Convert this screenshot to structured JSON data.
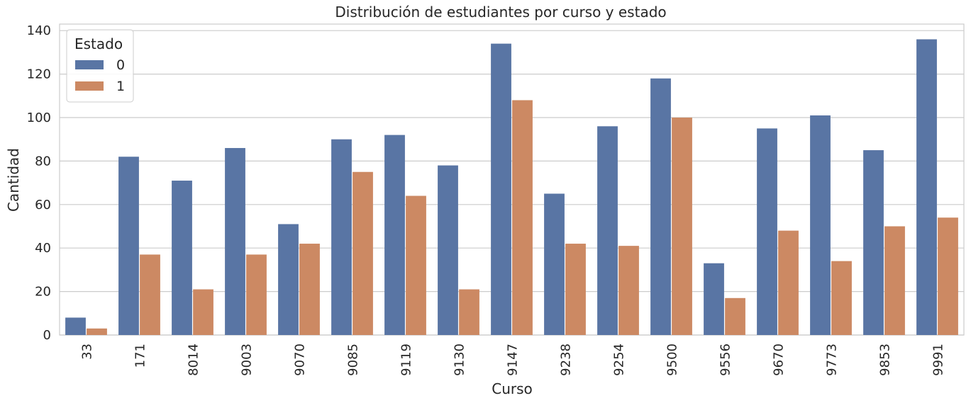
{
  "chart_data": {
    "type": "bar",
    "title": "Distribución de estudiantes por curso y estado",
    "xlabel": "Curso",
    "ylabel": "Cantidad",
    "ylim": [
      0,
      143
    ],
    "yticks": [
      0,
      20,
      40,
      60,
      80,
      100,
      120,
      140
    ],
    "grid": "horizontal",
    "legend": {
      "title": "Estado",
      "placement": "top-left"
    },
    "categories": [
      "33",
      "171",
      "8014",
      "9003",
      "9070",
      "9085",
      "9119",
      "9130",
      "9147",
      "9238",
      "9254",
      "9500",
      "9556",
      "9670",
      "9773",
      "9853",
      "9991"
    ],
    "series": [
      {
        "name": "0",
        "color": "#5975a4",
        "values": [
          8,
          82,
          71,
          86,
          51,
          90,
          92,
          78,
          134,
          65,
          96,
          118,
          33,
          95,
          101,
          85,
          136
        ]
      },
      {
        "name": "1",
        "color": "#cc8963",
        "values": [
          3,
          37,
          21,
          37,
          42,
          75,
          64,
          21,
          108,
          42,
          41,
          100,
          17,
          48,
          34,
          50,
          54
        ]
      }
    ]
  }
}
